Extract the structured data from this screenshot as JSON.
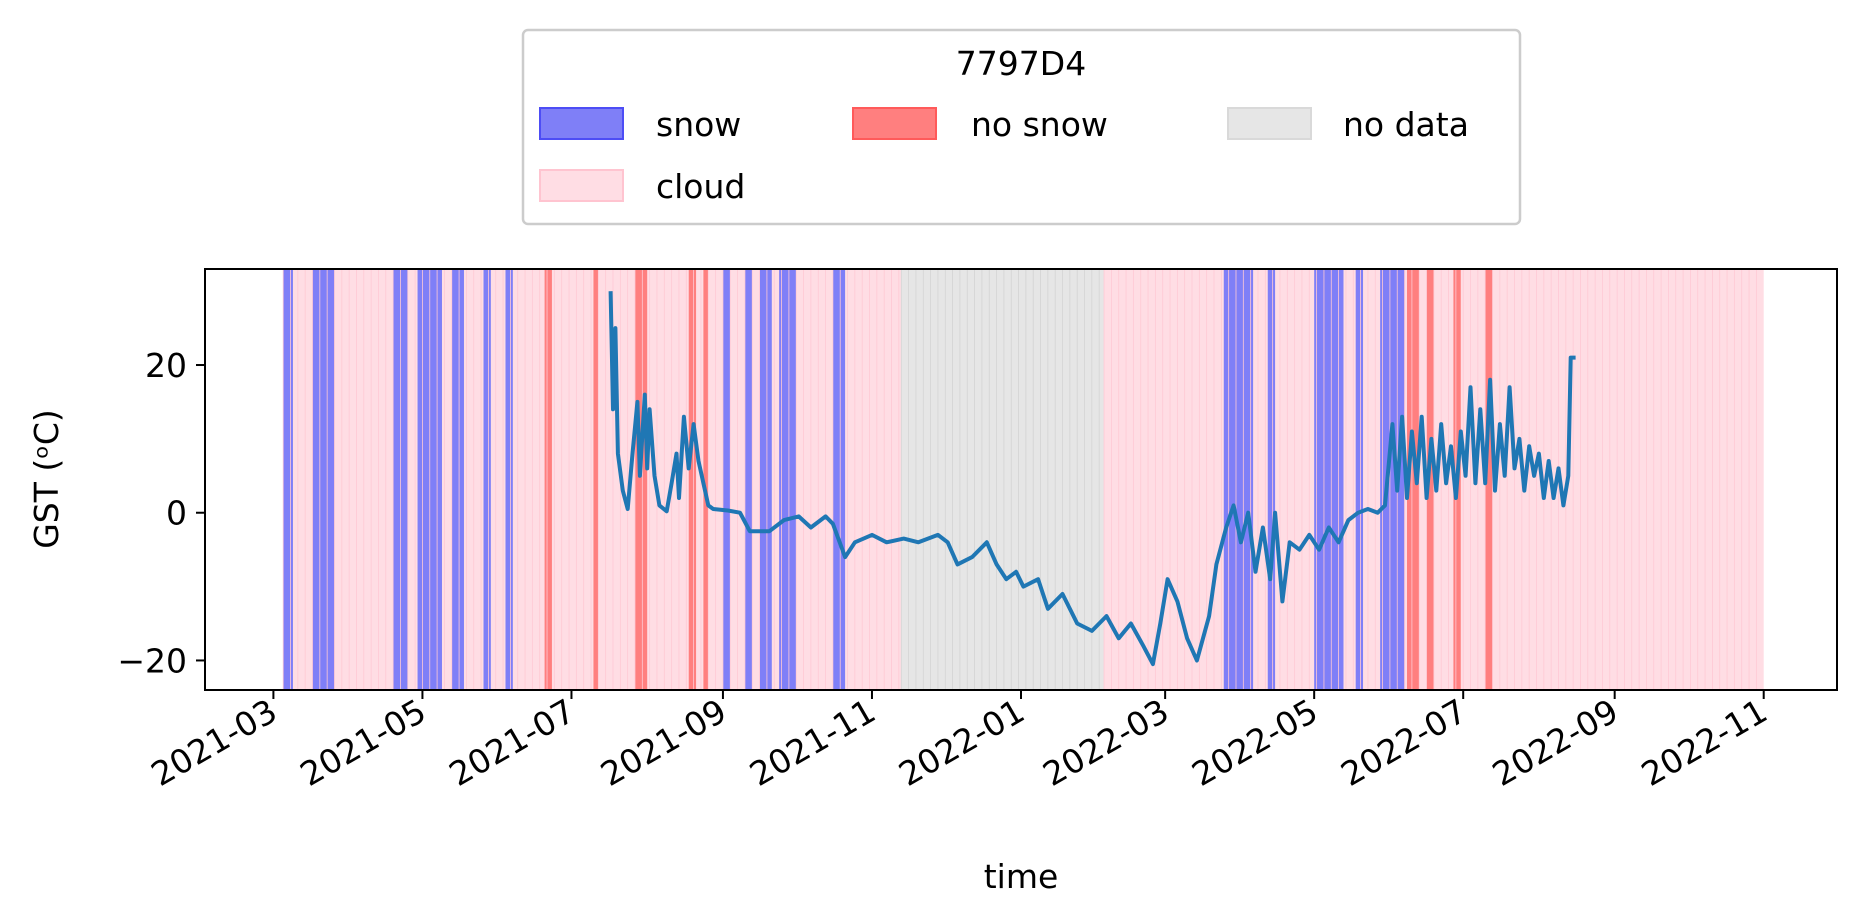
{
  "chart_data": {
    "type": "line",
    "title": "",
    "xlabel": "time",
    "ylabel": "GST (ᵒC)",
    "x_range": [
      "2021-02-01",
      "2022-12-01"
    ],
    "ylim": [
      -24,
      33
    ],
    "x_ticks": [
      "2021-03",
      "2021-05",
      "2021-07",
      "2021-09",
      "2021-11",
      "2022-01",
      "2022-03",
      "2022-05",
      "2022-07",
      "2022-09",
      "2022-11"
    ],
    "x_tick_dates": [
      "2021-03-01",
      "2021-05-01",
      "2021-07-01",
      "2021-09-01",
      "2021-11-01",
      "2022-01-01",
      "2022-03-01",
      "2022-05-01",
      "2022-07-01",
      "2022-09-01",
      "2022-11-01"
    ],
    "y_ticks": [
      20,
      0,
      -20
    ],
    "y_tick_labels": [
      "20",
      "0",
      "−20"
    ],
    "grid": false,
    "legend": {
      "title": "7797D4",
      "placement": "top-center",
      "columns": 3,
      "entries": [
        {
          "label": "snow",
          "color": "#7f7ff7",
          "edge": "#4d4df5"
        },
        {
          "label": "no snow",
          "color": "#ff7f7f",
          "edge": "#ff5a5a"
        },
        {
          "label": "no data",
          "color": "#e6e6e6",
          "edge": "#d9d9d9"
        },
        {
          "label": "cloud",
          "color": "#ffdde4",
          "edge": "#ffc4d0"
        }
      ]
    },
    "classification_spans": [
      {
        "class": "cloud",
        "start": "2021-03-05",
        "end": "2021-11-13"
      },
      {
        "class": "no data",
        "start": "2021-11-13",
        "end": "2022-02-04"
      },
      {
        "class": "cloud",
        "start": "2022-02-04",
        "end": "2022-11-01"
      },
      {
        "class": "snow",
        "start": "2021-03-05",
        "end": "2021-03-09"
      },
      {
        "class": "snow",
        "start": "2021-03-17",
        "end": "2021-03-26"
      },
      {
        "class": "snow",
        "start": "2021-04-19",
        "end": "2021-04-25"
      },
      {
        "class": "snow",
        "start": "2021-04-29",
        "end": "2021-05-09"
      },
      {
        "class": "snow",
        "start": "2021-05-13",
        "end": "2021-05-18"
      },
      {
        "class": "snow",
        "start": "2021-05-26",
        "end": "2021-05-29"
      },
      {
        "class": "snow",
        "start": "2021-06-04",
        "end": "2021-06-07"
      },
      {
        "class": "no snow",
        "start": "2021-06-20",
        "end": "2021-06-23"
      },
      {
        "class": "no snow",
        "start": "2021-07-10",
        "end": "2021-07-12"
      },
      {
        "class": "no snow",
        "start": "2021-07-27",
        "end": "2021-08-01"
      },
      {
        "class": "no snow",
        "start": "2021-08-18",
        "end": "2021-08-21"
      },
      {
        "class": "no snow",
        "start": "2021-08-24",
        "end": "2021-08-26"
      },
      {
        "class": "snow",
        "start": "2021-09-01",
        "end": "2021-09-04"
      },
      {
        "class": "snow",
        "start": "2021-09-10",
        "end": "2021-09-13"
      },
      {
        "class": "snow",
        "start": "2021-09-16",
        "end": "2021-09-21"
      },
      {
        "class": "snow",
        "start": "2021-09-24",
        "end": "2021-10-01"
      },
      {
        "class": "snow",
        "start": "2021-10-16",
        "end": "2021-10-21"
      },
      {
        "class": "snow",
        "start": "2022-03-25",
        "end": "2022-04-06"
      },
      {
        "class": "snow",
        "start": "2022-04-12",
        "end": "2022-04-15"
      },
      {
        "class": "snow",
        "start": "2022-05-01",
        "end": "2022-05-13"
      },
      {
        "class": "snow",
        "start": "2022-05-18",
        "end": "2022-05-21"
      },
      {
        "class": "snow",
        "start": "2022-05-28",
        "end": "2022-06-07"
      },
      {
        "class": "no snow",
        "start": "2022-06-08",
        "end": "2022-06-13"
      },
      {
        "class": "no snow",
        "start": "2022-06-16",
        "end": "2022-06-19"
      },
      {
        "class": "no snow",
        "start": "2022-06-27",
        "end": "2022-06-30"
      },
      {
        "class": "no snow",
        "start": "2022-07-10",
        "end": "2022-07-13"
      }
    ],
    "series": [
      {
        "color": "#1f77b4",
        "points": [
          [
            "2021-07-17",
            30
          ],
          [
            "2021-07-18",
            14
          ],
          [
            "2021-07-19",
            25
          ],
          [
            "2021-07-20",
            8
          ],
          [
            "2021-07-22",
            3
          ],
          [
            "2021-07-24",
            0.5
          ],
          [
            "2021-07-26",
            8
          ],
          [
            "2021-07-28",
            15
          ],
          [
            "2021-07-29",
            5
          ],
          [
            "2021-07-31",
            16
          ],
          [
            "2021-08-01",
            6
          ],
          [
            "2021-08-02",
            14
          ],
          [
            "2021-08-04",
            5
          ],
          [
            "2021-08-06",
            1
          ],
          [
            "2021-08-09",
            0.2
          ],
          [
            "2021-08-11",
            4
          ],
          [
            "2021-08-13",
            8
          ],
          [
            "2021-08-14",
            2
          ],
          [
            "2021-08-16",
            13
          ],
          [
            "2021-08-18",
            6
          ],
          [
            "2021-08-20",
            12
          ],
          [
            "2021-08-22",
            7
          ],
          [
            "2021-08-24",
            4
          ],
          [
            "2021-08-26",
            1
          ],
          [
            "2021-08-28",
            0.5
          ],
          [
            "2021-09-03",
            0.3
          ],
          [
            "2021-09-08",
            0
          ],
          [
            "2021-09-12",
            -2.5
          ],
          [
            "2021-09-20",
            -2.5
          ],
          [
            "2021-09-26",
            -1
          ],
          [
            "2021-10-02",
            -0.5
          ],
          [
            "2021-10-07",
            -2
          ],
          [
            "2021-10-13",
            -0.5
          ],
          [
            "2021-10-16",
            -1.5
          ],
          [
            "2021-10-21",
            -6
          ],
          [
            "2021-10-25",
            -4
          ],
          [
            "2021-11-01",
            -3
          ],
          [
            "2021-11-07",
            -4
          ],
          [
            "2021-11-14",
            -3.5
          ],
          [
            "2021-11-20",
            -4
          ],
          [
            "2021-11-28",
            -3
          ],
          [
            "2021-12-02",
            -4
          ],
          [
            "2021-12-06",
            -7
          ],
          [
            "2021-12-12",
            -6
          ],
          [
            "2021-12-18",
            -4
          ],
          [
            "2021-12-22",
            -7
          ],
          [
            "2021-12-26",
            -9
          ],
          [
            "2021-12-30",
            -8
          ],
          [
            "2022-01-02",
            -10
          ],
          [
            "2022-01-08",
            -9
          ],
          [
            "2022-01-12",
            -13
          ],
          [
            "2022-01-18",
            -11
          ],
          [
            "2022-01-24",
            -15
          ],
          [
            "2022-01-30",
            -16
          ],
          [
            "2022-02-05",
            -14
          ],
          [
            "2022-02-10",
            -17
          ],
          [
            "2022-02-15",
            -15
          ],
          [
            "2022-02-20",
            -18
          ],
          [
            "2022-02-24",
            -20.5
          ],
          [
            "2022-02-27",
            -15
          ],
          [
            "2022-03-02",
            -9
          ],
          [
            "2022-03-06",
            -12
          ],
          [
            "2022-03-10",
            -17
          ],
          [
            "2022-03-14",
            -20
          ],
          [
            "2022-03-19",
            -14
          ],
          [
            "2022-03-22",
            -7
          ],
          [
            "2022-03-26",
            -2
          ],
          [
            "2022-03-29",
            1
          ],
          [
            "2022-04-01",
            -4
          ],
          [
            "2022-04-04",
            0
          ],
          [
            "2022-04-07",
            -8
          ],
          [
            "2022-04-10",
            -2
          ],
          [
            "2022-04-13",
            -9
          ],
          [
            "2022-04-15",
            0
          ],
          [
            "2022-04-18",
            -12
          ],
          [
            "2022-04-21",
            -4
          ],
          [
            "2022-04-25",
            -5
          ],
          [
            "2022-04-29",
            -3
          ],
          [
            "2022-05-03",
            -5
          ],
          [
            "2022-05-07",
            -2
          ],
          [
            "2022-05-11",
            -4
          ],
          [
            "2022-05-15",
            -1
          ],
          [
            "2022-05-19",
            0
          ],
          [
            "2022-05-23",
            0.5
          ],
          [
            "2022-05-27",
            0
          ],
          [
            "2022-05-30",
            1
          ],
          [
            "2022-06-02",
            12
          ],
          [
            "2022-06-04",
            3
          ],
          [
            "2022-06-06",
            13
          ],
          [
            "2022-06-08",
            2
          ],
          [
            "2022-06-10",
            11
          ],
          [
            "2022-06-12",
            4
          ],
          [
            "2022-06-14",
            13
          ],
          [
            "2022-06-16",
            2
          ],
          [
            "2022-06-18",
            10
          ],
          [
            "2022-06-20",
            3
          ],
          [
            "2022-06-22",
            12
          ],
          [
            "2022-06-24",
            4
          ],
          [
            "2022-06-26",
            9
          ],
          [
            "2022-06-28",
            2
          ],
          [
            "2022-06-30",
            11
          ],
          [
            "2022-07-02",
            5
          ],
          [
            "2022-07-04",
            17
          ],
          [
            "2022-07-06",
            4
          ],
          [
            "2022-07-08",
            14
          ],
          [
            "2022-07-10",
            4
          ],
          [
            "2022-07-12",
            18
          ],
          [
            "2022-07-14",
            3
          ],
          [
            "2022-07-16",
            12
          ],
          [
            "2022-07-18",
            5
          ],
          [
            "2022-07-20",
            17
          ],
          [
            "2022-07-22",
            6
          ],
          [
            "2022-07-24",
            10
          ],
          [
            "2022-07-26",
            3
          ],
          [
            "2022-07-28",
            9
          ],
          [
            "2022-07-30",
            5
          ],
          [
            "2022-08-01",
            8
          ],
          [
            "2022-08-03",
            2
          ],
          [
            "2022-08-05",
            7
          ],
          [
            "2022-08-07",
            2
          ],
          [
            "2022-08-09",
            6
          ],
          [
            "2022-08-11",
            1
          ],
          [
            "2022-08-13",
            5
          ],
          [
            "2022-08-14",
            21
          ],
          [
            "2022-08-16",
            21
          ]
        ]
      }
    ]
  }
}
